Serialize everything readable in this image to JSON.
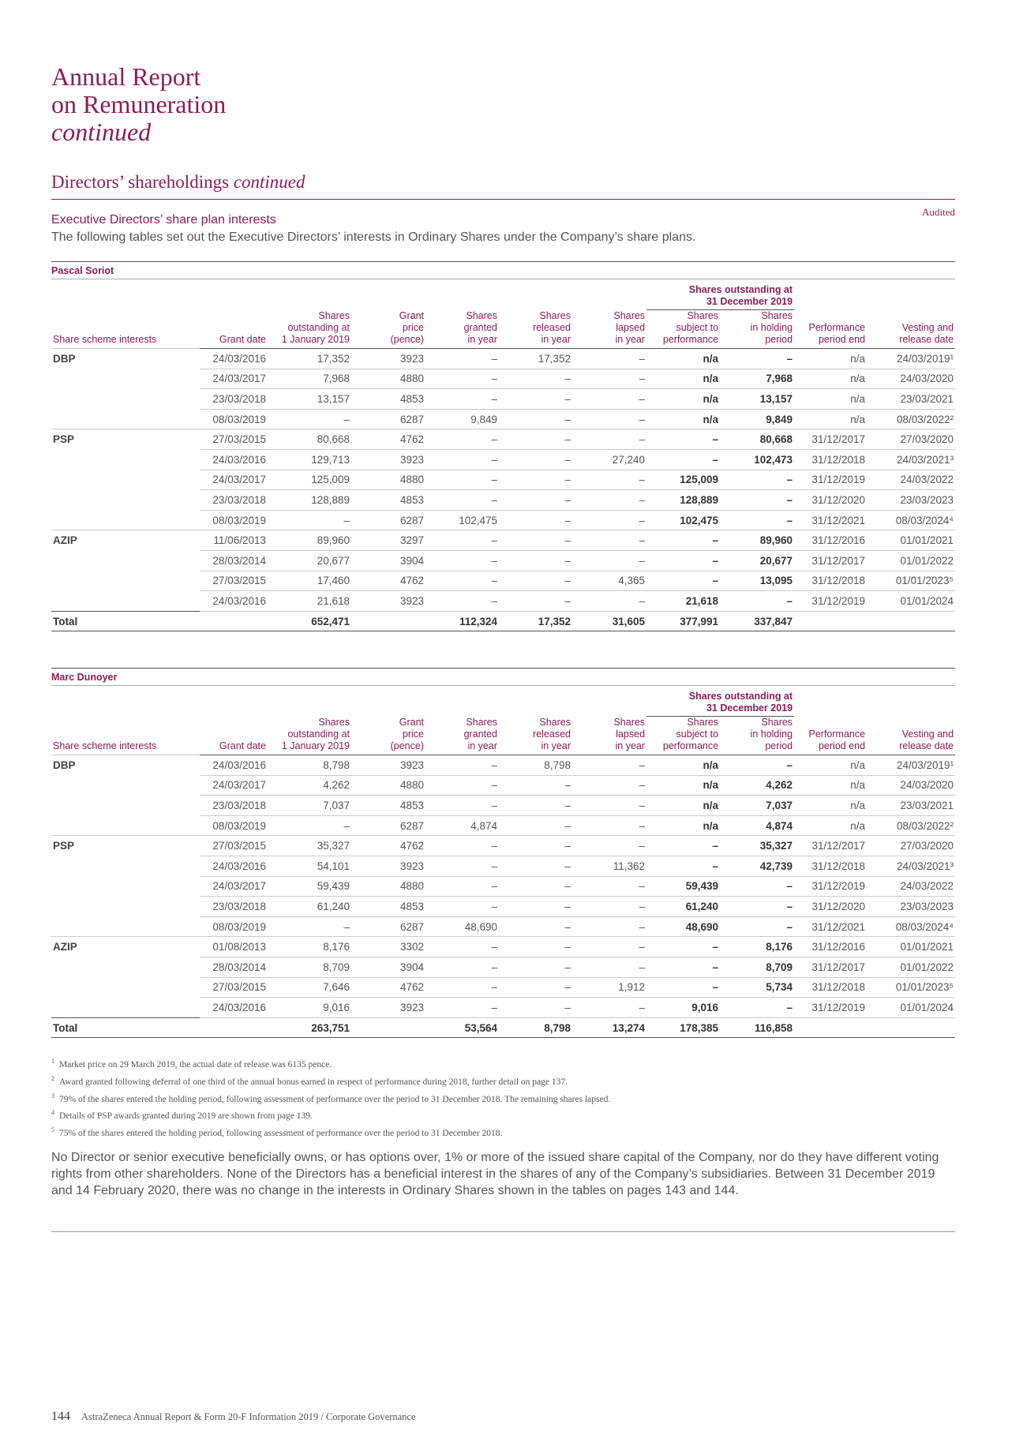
{
  "header": {
    "title_line1": "Annual Report",
    "title_line2": "on Remuneration",
    "title_line3": "continued"
  },
  "section": {
    "heading": "Directors’ shareholdings",
    "heading_suffix": "continued",
    "audited": "Audited",
    "subheading": "Executive Directors’ share plan interests",
    "intro": "The following tables set out the Executive Directors’ interests in Ordinary Shares under the Company’s share plans."
  },
  "tables": [
    {
      "name": "Pascal Soriot",
      "group_header": [
        "Shares outstanding at",
        "31 December 2019"
      ],
      "columns": [
        [
          "Share scheme interests"
        ],
        [
          "Grant date"
        ],
        [
          "Shares",
          "outstanding at",
          "1 January 2019"
        ],
        [
          "Grant",
          "price",
          "(pence)"
        ],
        [
          "Shares",
          "granted",
          "in year"
        ],
        [
          "Shares",
          "released",
          "in year"
        ],
        [
          "Shares",
          "lapsed",
          "in year"
        ],
        [
          "Shares",
          "subject to",
          "performance"
        ],
        [
          "Shares",
          "in holding",
          "period"
        ],
        [
          "Performance",
          "period end"
        ],
        [
          "Vesting and",
          "release date"
        ]
      ],
      "rows": [
        [
          "DBP",
          "24/03/2016",
          "17,352",
          "3923",
          "–",
          "17,352",
          "–",
          "n/a",
          "–",
          "n/a",
          "24/03/2019¹"
        ],
        [
          null,
          "24/03/2017",
          "7,968",
          "4880",
          "–",
          "–",
          "–",
          "n/a",
          "7,968",
          "n/a",
          "24/03/2020"
        ],
        [
          null,
          "23/03/2018",
          "13,157",
          "4853",
          "–",
          "–",
          "–",
          "n/a",
          "13,157",
          "n/a",
          "23/03/2021"
        ],
        [
          null,
          "08/03/2019",
          "–",
          "6287",
          "9,849",
          "–",
          "–",
          "n/a",
          "9,849",
          "n/a",
          "08/03/2022²"
        ],
        [
          "PSP",
          "27/03/2015",
          "80,668",
          "4762",
          "–",
          "–",
          "–",
          "–",
          "80,668",
          "31/12/2017",
          "27/03/2020"
        ],
        [
          null,
          "24/03/2016",
          "129,713",
          "3923",
          "–",
          "–",
          "27,240",
          "–",
          "102,473",
          "31/12/2018",
          "24/03/2021³"
        ],
        [
          null,
          "24/03/2017",
          "125,009",
          "4880",
          "–",
          "–",
          "–",
          "125,009",
          "–",
          "31/12/2019",
          "24/03/2022"
        ],
        [
          null,
          "23/03/2018",
          "128,889",
          "4853",
          "–",
          "–",
          "–",
          "128,889",
          "–",
          "31/12/2020",
          "23/03/2023"
        ],
        [
          null,
          "08/03/2019",
          "–",
          "6287",
          "102,475",
          "–",
          "–",
          "102,475",
          "–",
          "31/12/2021",
          "08/03/2024⁴"
        ],
        [
          "AZIP",
          "11/06/2013",
          "89,960",
          "3297",
          "–",
          "–",
          "–",
          "–",
          "89,960",
          "31/12/2016",
          "01/01/2021"
        ],
        [
          null,
          "28/03/2014",
          "20,677",
          "3904",
          "–",
          "–",
          "–",
          "–",
          "20,677",
          "31/12/2017",
          "01/01/2022"
        ],
        [
          null,
          "27/03/2015",
          "17,460",
          "4762",
          "–",
          "–",
          "4,365",
          "–",
          "13,095",
          "31/12/2018",
          "01/01/2023⁵"
        ],
        [
          null,
          "24/03/2016",
          "21,618",
          "3923",
          "–",
          "–",
          "–",
          "21,618",
          "–",
          "31/12/2019",
          "01/01/2024"
        ]
      ],
      "total": [
        "Total",
        null,
        "652,471",
        null,
        "112,324",
        "17,352",
        "31,605",
        "377,991",
        "337,847",
        null,
        null
      ]
    },
    {
      "name": "Marc Dunoyer",
      "group_header": [
        "Shares outstanding at",
        "31 December 2019"
      ],
      "columns": [
        [
          "Share scheme interests"
        ],
        [
          "Grant date"
        ],
        [
          "Shares",
          "outstanding at",
          "1 January 2019"
        ],
        [
          "Grant",
          "price",
          "(pence)"
        ],
        [
          "Shares",
          "granted",
          "in year"
        ],
        [
          "Shares",
          "released",
          "in year"
        ],
        [
          "Shares",
          "lapsed",
          "in year"
        ],
        [
          "Shares",
          "subject to",
          "performance"
        ],
        [
          "Shares",
          "in holding",
          "period"
        ],
        [
          "Performance",
          "period end"
        ],
        [
          "Vesting and",
          "release date"
        ]
      ],
      "rows": [
        [
          "DBP",
          "24/03/2016",
          "8,798",
          "3923",
          "–",
          "8,798",
          "–",
          "n/a",
          "–",
          "n/a",
          "24/03/2019¹"
        ],
        [
          null,
          "24/03/2017",
          "4,262",
          "4880",
          "–",
          "–",
          "–",
          "n/a",
          "4,262",
          "n/a",
          "24/03/2020"
        ],
        [
          null,
          "23/03/2018",
          "7,037",
          "4853",
          "–",
          "–",
          "–",
          "n/a",
          "7,037",
          "n/a",
          "23/03/2021"
        ],
        [
          null,
          "08/03/2019",
          "–",
          "6287",
          "4,874",
          "–",
          "–",
          "n/a",
          "4,874",
          "n/a",
          "08/03/2022²"
        ],
        [
          "PSP",
          "27/03/2015",
          "35,327",
          "4762",
          "–",
          "–",
          "–",
          "–",
          "35,327",
          "31/12/2017",
          "27/03/2020"
        ],
        [
          null,
          "24/03/2016",
          "54,101",
          "3923",
          "–",
          "–",
          "11,362",
          "–",
          "42,739",
          "31/12/2018",
          "24/03/2021³"
        ],
        [
          null,
          "24/03/2017",
          "59,439",
          "4880",
          "–",
          "–",
          "–",
          "59,439",
          "–",
          "31/12/2019",
          "24/03/2022"
        ],
        [
          null,
          "23/03/2018",
          "61,240",
          "4853",
          "–",
          "–",
          "–",
          "61,240",
          "–",
          "31/12/2020",
          "23/03/2023"
        ],
        [
          null,
          "08/03/2019",
          "–",
          "6287",
          "48,690",
          "–",
          "–",
          "48,690",
          "–",
          "31/12/2021",
          "08/03/2024⁴"
        ],
        [
          "AZIP",
          "01/08/2013",
          "8,176",
          "3302",
          "–",
          "–",
          "–",
          "–",
          "8,176",
          "31/12/2016",
          "01/01/2021"
        ],
        [
          null,
          "28/03/2014",
          "8,709",
          "3904",
          "–",
          "–",
          "–",
          "–",
          "8,709",
          "31/12/2017",
          "01/01/2022"
        ],
        [
          null,
          "27/03/2015",
          "7,646",
          "4762",
          "–",
          "–",
          "1,912",
          "–",
          "5,734",
          "31/12/2018",
          "01/01/2023⁵"
        ],
        [
          null,
          "24/03/2016",
          "9,016",
          "3923",
          "–",
          "–",
          "–",
          "9,016",
          "–",
          "31/12/2019",
          "01/01/2024"
        ]
      ],
      "total": [
        "Total",
        null,
        "263,751",
        null,
        "53,564",
        "8,798",
        "13,274",
        "178,385",
        "116,858",
        null,
        null
      ]
    }
  ],
  "footnotes": [
    {
      "marker": "1",
      "text": "Market price on 29 March 2019, the actual date of release was 6135 pence."
    },
    {
      "marker": "2",
      "text": "Award granted following deferral of one third of the annual bonus earned in respect of performance during 2018, further detail on page 137."
    },
    {
      "marker": "3",
      "text": "79% of the shares entered the holding period, following assessment of performance over the period to 31 December 2018. The remaining shares lapsed."
    },
    {
      "marker": "4",
      "text": "Details of PSP awards granted during 2019 are shown from page 139."
    },
    {
      "marker": "5",
      "text": "75% of the shares entered the holding period, following assessment of performance over the period to 31 December 2018."
    }
  ],
  "paragraph": "No Director or senior executive beneficially owns, or has options over, 1% or more of the issued share capital of the Company, nor do they have different voting rights from other shareholders. None of the Directors has a beneficial interest in the shares of any of the Company’s subsidiaries. Between 31 December 2019 and 14 February 2020, there was no change in the interests in Ordinary Shares shown in the tables on pages 143 and 144.",
  "footer": {
    "page": "144",
    "text": "AstraZeneca Annual Report & Form 20-F Information 2019 / Corporate Governance"
  }
}
